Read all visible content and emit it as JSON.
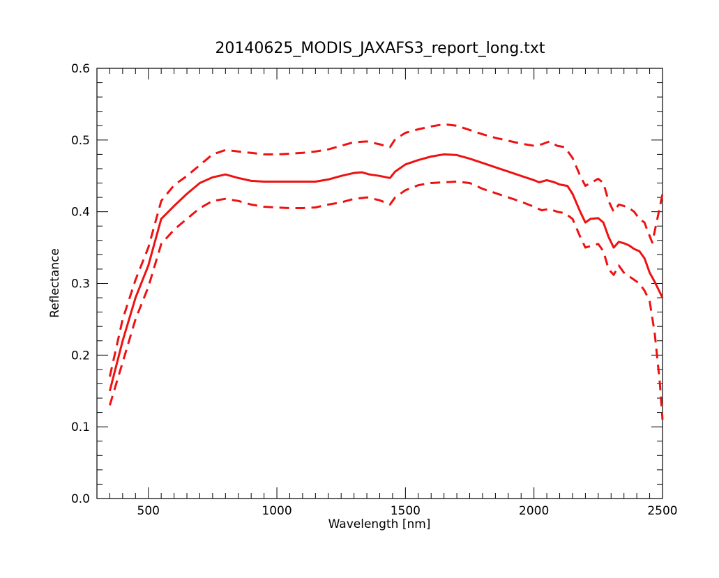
{
  "chart_data": {
    "type": "line",
    "title": "20140625_MODIS_JAXAFS3_report_long.txt",
    "xlabel": "Wavelength [nm]",
    "ylabel": "Reflectance",
    "xlim": [
      300,
      2500
    ],
    "ylim": [
      0.0,
      0.6
    ],
    "x_ticks": [
      500,
      1000,
      1500,
      2000,
      2500
    ],
    "x_tick_labels": [
      "500",
      "1000",
      "1500",
      "2000",
      "2500"
    ],
    "y_ticks": [
      0.0,
      0.1,
      0.2,
      0.3,
      0.4,
      0.5,
      0.6
    ],
    "y_tick_labels": [
      "0.0",
      "0.1",
      "0.2",
      "0.3",
      "0.4",
      "0.5",
      "0.6"
    ],
    "grid": false,
    "line_color": "#ee1111",
    "series": [
      {
        "style": "solid",
        "x": [
          350,
          400,
          450,
          500,
          550,
          600,
          650,
          700,
          750,
          800,
          850,
          900,
          950,
          1000,
          1050,
          1100,
          1150,
          1200,
          1250,
          1300,
          1330,
          1360,
          1400,
          1440,
          1460,
          1500,
          1550,
          1600,
          1650,
          1700,
          1750,
          1800,
          1850,
          1900,
          1950,
          2000,
          2020,
          2050,
          2080,
          2100,
          2130,
          2150,
          2180,
          2200,
          2220,
          2250,
          2270,
          2290,
          2310,
          2330,
          2350,
          2370,
          2390,
          2410,
          2430,
          2450,
          2470,
          2500
        ],
        "y": [
          0.15,
          0.22,
          0.28,
          0.325,
          0.39,
          0.408,
          0.425,
          0.44,
          0.448,
          0.452,
          0.447,
          0.443,
          0.442,
          0.442,
          0.442,
          0.442,
          0.442,
          0.445,
          0.45,
          0.454,
          0.455,
          0.452,
          0.45,
          0.447,
          0.456,
          0.466,
          0.472,
          0.477,
          0.48,
          0.479,
          0.474,
          0.468,
          0.462,
          0.456,
          0.45,
          0.444,
          0.441,
          0.444,
          0.441,
          0.438,
          0.436,
          0.425,
          0.4,
          0.385,
          0.39,
          0.391,
          0.385,
          0.365,
          0.35,
          0.358,
          0.356,
          0.353,
          0.348,
          0.345,
          0.335,
          0.315,
          0.302,
          0.28
        ]
      },
      {
        "style": "dashed",
        "x": [
          350,
          400,
          450,
          500,
          550,
          600,
          650,
          700,
          750,
          800,
          850,
          900,
          950,
          1000,
          1050,
          1100,
          1150,
          1200,
          1250,
          1300,
          1350,
          1400,
          1440,
          1460,
          1500,
          1550,
          1600,
          1650,
          1700,
          1750,
          1800,
          1850,
          1900,
          1950,
          2000,
          2030,
          2060,
          2090,
          2120,
          2150,
          2180,
          2200,
          2220,
          2250,
          2270,
          2290,
          2310,
          2330,
          2350,
          2370,
          2390,
          2410,
          2430,
          2440,
          2460,
          2480,
          2500
        ],
        "y": [
          0.17,
          0.25,
          0.305,
          0.35,
          0.415,
          0.437,
          0.45,
          0.465,
          0.48,
          0.486,
          0.484,
          0.482,
          0.48,
          0.48,
          0.481,
          0.482,
          0.484,
          0.487,
          0.492,
          0.497,
          0.498,
          0.494,
          0.49,
          0.501,
          0.51,
          0.515,
          0.519,
          0.522,
          0.52,
          0.514,
          0.508,
          0.503,
          0.499,
          0.495,
          0.492,
          0.494,
          0.498,
          0.492,
          0.49,
          0.475,
          0.45,
          0.436,
          0.44,
          0.446,
          0.44,
          0.415,
          0.4,
          0.41,
          0.408,
          0.405,
          0.4,
          0.39,
          0.385,
          0.375,
          0.357,
          0.39,
          0.425
        ]
      },
      {
        "style": "dashed",
        "x": [
          350,
          400,
          450,
          500,
          550,
          600,
          650,
          700,
          750,
          800,
          850,
          900,
          950,
          1000,
          1050,
          1100,
          1150,
          1200,
          1250,
          1300,
          1350,
          1400,
          1440,
          1460,
          1500,
          1550,
          1600,
          1650,
          1700,
          1750,
          1800,
          1850,
          1900,
          1950,
          2000,
          2030,
          2060,
          2090,
          2120,
          2150,
          2180,
          2200,
          2220,
          2250,
          2270,
          2290,
          2310,
          2330,
          2350,
          2370,
          2390,
          2410,
          2430,
          2450,
          2470,
          2490,
          2500
        ],
        "y": [
          0.13,
          0.19,
          0.25,
          0.295,
          0.355,
          0.375,
          0.39,
          0.405,
          0.415,
          0.418,
          0.415,
          0.41,
          0.407,
          0.406,
          0.405,
          0.405,
          0.406,
          0.41,
          0.413,
          0.418,
          0.42,
          0.416,
          0.41,
          0.42,
          0.43,
          0.437,
          0.44,
          0.441,
          0.442,
          0.44,
          0.432,
          0.426,
          0.42,
          0.414,
          0.407,
          0.402,
          0.404,
          0.4,
          0.398,
          0.39,
          0.365,
          0.35,
          0.352,
          0.355,
          0.345,
          0.32,
          0.312,
          0.325,
          0.315,
          0.31,
          0.305,
          0.3,
          0.29,
          0.275,
          0.23,
          0.16,
          0.11
        ]
      }
    ]
  }
}
